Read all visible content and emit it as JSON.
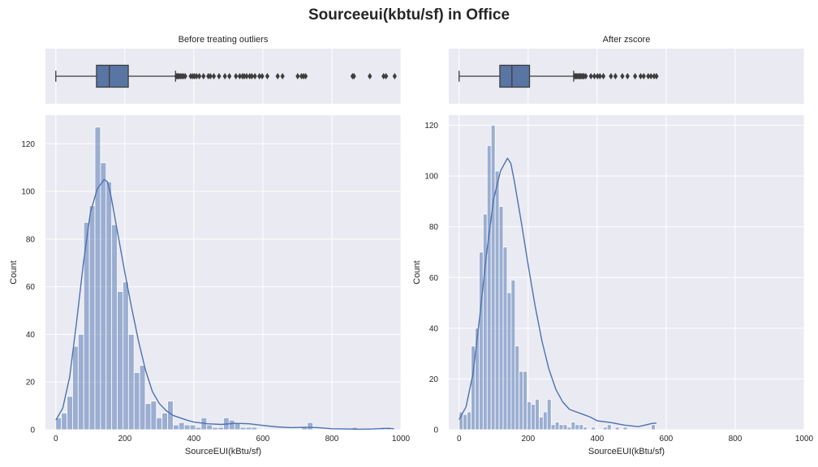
{
  "figure": {
    "title": "Sourceeui(kbtu/sf) in Office"
  },
  "colors": {
    "panel_bg": "#eaeaf2",
    "grid": "#ffffff",
    "bar_fill": "#4c72b0",
    "bar_opacity": 0.5,
    "kde_line": "#4c72b0",
    "box_fill": "#5975a4",
    "box_line": "#3d3d3d",
    "flier": "#3d3d3d"
  },
  "chart_data": [
    {
      "type": "box",
      "panel": "top-left",
      "title": "Before treating outliers",
      "xlim": [
        -30,
        1000
      ],
      "xticks": [
        0,
        200,
        400,
        600,
        800,
        1000
      ],
      "grid": true,
      "box": {
        "whisker_low": 0,
        "q1": 118,
        "median": 155,
        "q3": 210,
        "whisker_high": 347
      },
      "fliers": [
        349,
        352,
        355,
        358,
        362,
        366,
        370,
        375,
        391,
        397,
        402,
        408,
        416,
        428,
        442,
        448,
        458,
        473,
        490,
        503,
        522,
        533,
        541,
        546,
        553,
        562,
        568,
        577,
        590,
        598,
        613,
        643,
        657,
        701,
        712,
        718,
        724,
        860,
        864,
        910,
        950,
        957,
        982
      ]
    },
    {
      "type": "box",
      "panel": "top-right",
      "title": "After zscore",
      "xlim": [
        -30,
        1000
      ],
      "xticks": [
        0,
        200,
        400,
        600,
        800,
        1000
      ],
      "grid": true,
      "box": {
        "whisker_low": 0,
        "q1": 118,
        "median": 153,
        "q3": 204,
        "whisker_high": 332
      },
      "fliers": [
        335,
        338,
        341,
        344,
        347,
        350,
        353,
        356,
        359,
        362,
        367,
        382,
        392,
        401,
        408,
        418,
        440,
        453,
        473,
        488,
        510,
        526,
        535,
        548,
        556,
        565,
        572
      ]
    },
    {
      "type": "histogram",
      "panel": "bottom-left",
      "xlabel": "SourceEUI(kBtu/sf)",
      "ylabel": "Count",
      "xlim": [
        -30,
        1000
      ],
      "ylim": [
        0,
        132
      ],
      "xticks": [
        0,
        200,
        400,
        600,
        800,
        1000
      ],
      "yticks": [
        0,
        20,
        40,
        60,
        80,
        100,
        120
      ],
      "grid": true,
      "bin_start": 0,
      "bin_width": 16.2,
      "counts": [
        5,
        7,
        14,
        35,
        40,
        87,
        94,
        127,
        112,
        104,
        86,
        58,
        62,
        40,
        24,
        27,
        11,
        12,
        5,
        7,
        12,
        2,
        3,
        2,
        2,
        1,
        5,
        2,
        1,
        1,
        5,
        4,
        3,
        1,
        1,
        1,
        0,
        0,
        0,
        0,
        0,
        0,
        0,
        0,
        1,
        3,
        0,
        0,
        0,
        0,
        0,
        0,
        0,
        1,
        0,
        0,
        0,
        0,
        1,
        1
      ],
      "kde": {
        "x": [
          0,
          20,
          40,
          60,
          80,
          100,
          120,
          140,
          150,
          160,
          180,
          200,
          220,
          240,
          260,
          280,
          300,
          320,
          340,
          360,
          380,
          400,
          440,
          480,
          520,
          560,
          600,
          640,
          680,
          720,
          760,
          800,
          840,
          880,
          920,
          960,
          980
        ],
        "y": [
          4,
          9,
          22,
          45,
          70,
          91,
          101,
          105,
          104,
          98,
          82,
          66,
          51,
          37,
          25,
          16,
          11,
          8,
          6,
          5,
          4,
          3.2,
          2.5,
          2.2,
          2.7,
          2.5,
          1.8,
          1.2,
          0.9,
          1,
          0.9,
          0.4,
          0.3,
          0.2,
          0.3,
          0.6,
          0.4
        ]
      }
    },
    {
      "type": "histogram",
      "panel": "bottom-right",
      "xlabel": "SourceEUI(kBtu/sf)",
      "ylabel": "Count",
      "xlim": [
        -30,
        1000
      ],
      "ylim": [
        0,
        124
      ],
      "xticks": [
        0,
        200,
        400,
        600,
        800,
        1000
      ],
      "yticks": [
        0,
        20,
        40,
        60,
        80,
        100,
        120
      ],
      "grid": true,
      "bin_start": 0,
      "bin_width": 11.6,
      "counts": [
        7,
        6,
        7,
        33,
        40,
        70,
        85,
        112,
        120,
        102,
        88,
        72,
        54,
        59,
        33,
        23,
        23,
        11,
        10,
        12,
        5,
        7,
        12,
        2,
        3,
        2,
        2,
        1,
        3,
        2,
        2,
        1,
        0,
        1,
        0,
        0,
        1,
        2,
        0,
        1,
        0,
        1,
        0,
        0,
        0,
        0,
        0,
        0,
        2
      ],
      "kde": {
        "x": [
          0,
          20,
          40,
          60,
          80,
          100,
          120,
          140,
          150,
          160,
          180,
          200,
          220,
          240,
          260,
          280,
          300,
          320,
          340,
          360,
          380,
          400,
          440,
          480,
          520,
          560,
          572
        ],
        "y": [
          4,
          9,
          22,
          45,
          70,
          91,
          102,
          107,
          105,
          98,
          82,
          65,
          49,
          35,
          24,
          16,
          11,
          8,
          7,
          6,
          5,
          3.5,
          2.8,
          1.8,
          1.2,
          2.5,
          2.6
        ]
      }
    }
  ]
}
